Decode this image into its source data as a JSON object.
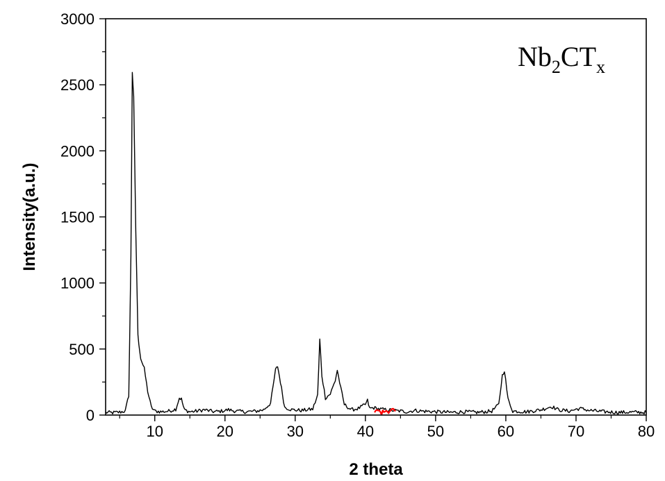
{
  "chart_data": {
    "type": "line",
    "title": "",
    "xlabel": "2 theta",
    "ylabel": "Intensity(a.u.)",
    "xlim": [
      3,
      80
    ],
    "ylim": [
      0,
      3000
    ],
    "x_ticks": [
      10,
      20,
      30,
      40,
      50,
      60,
      70,
      80
    ],
    "y_ticks": [
      0,
      500,
      1000,
      1500,
      2000,
      2500,
      3000
    ],
    "annotation": {
      "main": "Nb",
      "sub1": "2",
      "mid": "CT",
      "sub2": "x"
    },
    "series": [
      {
        "color": "#000000",
        "points": [
          [
            3,
            20
          ],
          [
            4,
            18
          ],
          [
            5,
            22
          ],
          [
            5.8,
            30
          ],
          [
            6.3,
            150
          ],
          [
            6.6,
            1200
          ],
          [
            6.8,
            2600
          ],
          [
            7.0,
            2400
          ],
          [
            7.3,
            1400
          ],
          [
            7.6,
            600
          ],
          [
            8.0,
            430
          ],
          [
            8.5,
            350
          ],
          [
            9.0,
            180
          ],
          [
            9.5,
            60
          ],
          [
            10.0,
            30
          ],
          [
            11,
            25
          ],
          [
            12,
            30
          ],
          [
            13,
            45
          ],
          [
            13.5,
            130
          ],
          [
            13.8,
            120
          ],
          [
            14.2,
            40
          ],
          [
            15,
            25
          ],
          [
            16,
            30
          ],
          [
            17,
            40
          ],
          [
            17.5,
            35
          ],
          [
            18.5,
            25
          ],
          [
            19.5,
            30
          ],
          [
            20.5,
            40
          ],
          [
            21.5,
            30
          ],
          [
            23,
            25
          ],
          [
            24.5,
            30
          ],
          [
            25.5,
            40
          ],
          [
            26.5,
            90
          ],
          [
            27.2,
            340
          ],
          [
            27.5,
            370
          ],
          [
            27.9,
            250
          ],
          [
            28.5,
            60
          ],
          [
            29.5,
            40
          ],
          [
            31,
            35
          ],
          [
            32.5,
            45
          ],
          [
            33.2,
            150
          ],
          [
            33.5,
            570
          ],
          [
            33.8,
            300
          ],
          [
            34.3,
            130
          ],
          [
            35.0,
            160
          ],
          [
            35.7,
            260
          ],
          [
            36.0,
            340
          ],
          [
            36.5,
            200
          ],
          [
            37.0,
            80
          ],
          [
            38,
            40
          ],
          [
            39,
            50
          ],
          [
            40,
            80
          ],
          [
            40.3,
            110
          ],
          [
            40.6,
            50
          ],
          [
            41.2,
            55
          ],
          [
            42,
            45
          ],
          [
            43,
            40
          ],
          [
            44,
            35
          ],
          [
            45,
            30
          ],
          [
            46,
            25
          ],
          [
            47,
            35
          ],
          [
            48,
            30
          ],
          [
            50,
            25
          ],
          [
            52,
            20
          ],
          [
            54,
            25
          ],
          [
            56,
            20
          ],
          [
            58,
            30
          ],
          [
            59,
            80
          ],
          [
            59.5,
            300
          ],
          [
            59.8,
            340
          ],
          [
            60.3,
            120
          ],
          [
            61,
            30
          ],
          [
            63,
            25
          ],
          [
            65,
            40
          ],
          [
            66.5,
            65
          ],
          [
            67.5,
            40
          ],
          [
            69,
            30
          ],
          [
            70.5,
            50
          ],
          [
            72,
            35
          ],
          [
            74,
            25
          ],
          [
            76,
            20
          ],
          [
            78,
            22
          ],
          [
            80,
            20
          ]
        ]
      },
      {
        "color": "#ff0000",
        "points": [
          [
            41.3,
            20
          ],
          [
            41.8,
            35
          ],
          [
            42.3,
            15
          ],
          [
            42.8,
            40
          ],
          [
            43.3,
            25
          ],
          [
            43.8,
            45
          ],
          [
            44.3,
            30
          ]
        ]
      }
    ]
  }
}
